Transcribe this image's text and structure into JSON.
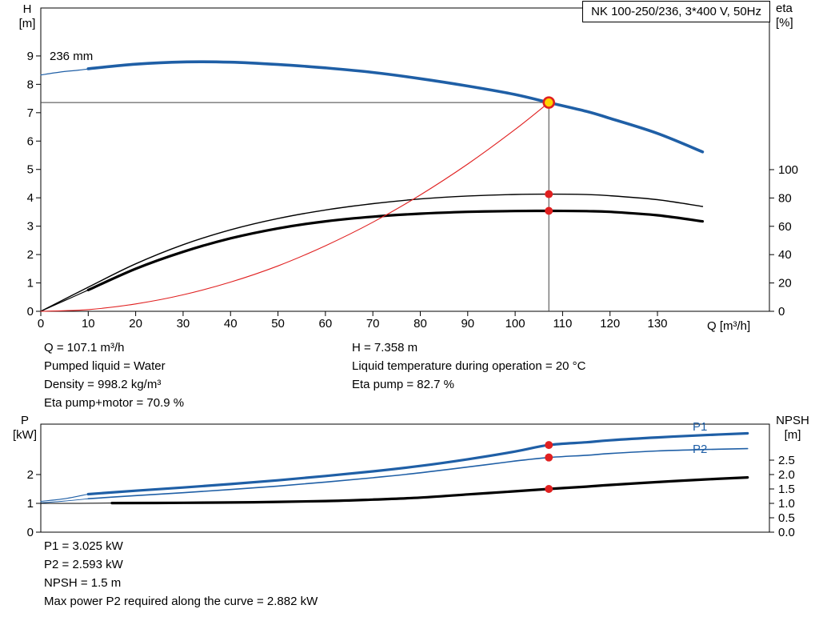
{
  "labels": {
    "h": "H",
    "h_unit": "[m]",
    "eta": "eta",
    "eta_unit": "[%]",
    "q": "Q [m³/h]",
    "p": "P",
    "p_unit": "[kW]",
    "npsh": "NPSH",
    "npsh_unit": "[m]",
    "p1": "P1",
    "p2": "P2",
    "impeller": "236 mm"
  },
  "info_top": {
    "left": [
      "Q = 107.1 m³/h",
      "Pumped liquid = Water",
      "Density = 998.2 kg/m³",
      "Eta pump+motor = 70.9 %"
    ],
    "right": [
      "H = 7.358 m",
      "Liquid temperature during operation = 20 °C",
      "Eta pump = 82.7 %"
    ]
  },
  "info_bottom": [
    "P1 = 3.025 kW",
    "P2 = 2.593 kW",
    "NPSH = 1.5 m",
    "Max power P2 required along the curve = 2.882 kW"
  ],
  "colors": {
    "curve_blue": "#1f5fa6",
    "curve_red": "#e02020",
    "curve_black": "#000000",
    "duty_point_fill": "#ffd400",
    "crosshair": "#404040"
  },
  "chart_data": [
    {
      "id": "qh_eta",
      "type": "line",
      "title": "NK 100-250/236, 3*400 V, 50Hz",
      "x_axis": {
        "label": "Q [m³/h]",
        "min": 0,
        "max": 153.6,
        "ticks": [
          {
            "v": 0,
            "label": "0"
          },
          {
            "v": 10,
            "label": "10"
          },
          {
            "v": 20,
            "label": "20"
          },
          {
            "v": 30,
            "label": "30"
          },
          {
            "v": 40,
            "label": "40"
          },
          {
            "v": 50,
            "label": "50"
          },
          {
            "v": 60,
            "label": "60"
          },
          {
            "v": 70,
            "label": "70"
          },
          {
            "v": 80,
            "label": "80"
          },
          {
            "v": 90,
            "label": "90"
          },
          {
            "v": 100,
            "label": "100"
          },
          {
            "v": 110,
            "label": "110"
          },
          {
            "v": 120,
            "label": "120"
          },
          {
            "v": 130,
            "label": "130"
          }
        ]
      },
      "y_left": {
        "label": "H [m]",
        "min": 0,
        "max": 10.69,
        "ticks": [
          {
            "v": 0,
            "label": "0"
          },
          {
            "v": 1,
            "label": "1"
          },
          {
            "v": 2,
            "label": "2"
          },
          {
            "v": 3,
            "label": "3"
          },
          {
            "v": 4,
            "label": "4"
          },
          {
            "v": 5,
            "label": "5"
          },
          {
            "v": 6,
            "label": "6"
          },
          {
            "v": 7,
            "label": "7"
          },
          {
            "v": 8,
            "label": "8"
          },
          {
            "v": 9,
            "label": "9"
          }
        ]
      },
      "y_right": {
        "label": "eta [%]",
        "min": 0,
        "max": 214.1,
        "ticks": [
          {
            "v": 0,
            "label": "0"
          },
          {
            "v": 20,
            "label": "20"
          },
          {
            "v": 40,
            "label": "40"
          },
          {
            "v": 60,
            "label": "60"
          },
          {
            "v": 80,
            "label": "80"
          },
          {
            "v": 100,
            "label": "100"
          }
        ]
      },
      "series": [
        {
          "name": "qh-curve-start-thin",
          "axis": "left",
          "color": "#1f5fa6",
          "width": 1.2,
          "points": [
            [
              0,
              8.33
            ],
            [
              4,
              8.43
            ],
            [
              8,
              8.5
            ],
            [
              12,
              8.58
            ]
          ]
        },
        {
          "name": "qh-curve-236mm",
          "axis": "left",
          "color": "#1f5fa6",
          "width": 3.6,
          "points": [
            [
              10,
              8.55
            ],
            [
              20,
              8.71
            ],
            [
              30,
              8.79
            ],
            [
              40,
              8.78
            ],
            [
              50,
              8.7
            ],
            [
              60,
              8.58
            ],
            [
              70,
              8.42
            ],
            [
              80,
              8.2
            ],
            [
              90,
              7.94
            ],
            [
              100,
              7.64
            ],
            [
              107.1,
              7.358
            ],
            [
              115,
              7.05
            ],
            [
              120,
              6.8
            ],
            [
              130,
              6.27
            ],
            [
              139.5,
              5.62
            ]
          ]
        },
        {
          "name": "eta-pump-curve",
          "axis": "right",
          "color": "#000000",
          "width": 1.4,
          "points": [
            [
              0,
              0
            ],
            [
              10,
              17
            ],
            [
              20,
              33.5
            ],
            [
              30,
              47
            ],
            [
              40,
              57.5
            ],
            [
              50,
              65.5
            ],
            [
              60,
              71.5
            ],
            [
              70,
              76
            ],
            [
              80,
              79.3
            ],
            [
              90,
              81.4
            ],
            [
              100,
              82.5
            ],
            [
              107.1,
              82.7
            ],
            [
              115,
              82.4
            ],
            [
              120,
              81.6
            ],
            [
              130,
              78.8
            ],
            [
              139.5,
              74
            ]
          ]
        },
        {
          "name": "eta-pump-motor-start-thin",
          "axis": "right",
          "color": "#000000",
          "width": 1.2,
          "points": [
            [
              0,
              0
            ],
            [
              5,
              7.5
            ],
            [
              10,
              15
            ]
          ]
        },
        {
          "name": "eta-pump-motor-curve",
          "axis": "right",
          "color": "#000000",
          "width": 3.2,
          "points": [
            [
              10,
              15
            ],
            [
              20,
              30
            ],
            [
              30,
              42
            ],
            [
              40,
              51.5
            ],
            [
              50,
              58.5
            ],
            [
              60,
              63.5
            ],
            [
              70,
              66.8
            ],
            [
              80,
              68.9
            ],
            [
              90,
              70.2
            ],
            [
              100,
              70.8
            ],
            [
              107.1,
              70.9
            ],
            [
              115,
              70.7
            ],
            [
              120,
              70.2
            ],
            [
              130,
              67.8
            ],
            [
              139.5,
              63.5
            ]
          ]
        },
        {
          "name": "system-resistance-curve",
          "axis": "left",
          "color": "#e02020",
          "width": 1.1,
          "points": [
            [
              0,
              0
            ],
            [
              10,
              0.06
            ],
            [
              20,
              0.26
            ],
            [
              30,
              0.58
            ],
            [
              40,
              1.03
            ],
            [
              50,
              1.6
            ],
            [
              60,
              2.31
            ],
            [
              70,
              3.14
            ],
            [
              80,
              4.1
            ],
            [
              90,
              5.19
            ],
            [
              100,
              6.41
            ],
            [
              107.1,
              7.358
            ]
          ]
        }
      ],
      "markers": [
        {
          "name": "duty-point",
          "axis": "left",
          "x": 107.1,
          "y": 7.358,
          "r": 6.5,
          "fill": "#ffd400",
          "stroke": "#e02020",
          "stroke_width": 2.6
        },
        {
          "name": "eta-pump-point",
          "axis": "right",
          "x": 107.1,
          "y": 82.7,
          "r": 5,
          "fill": "#e02020"
        },
        {
          "name": "eta-pump-motor-point",
          "axis": "right",
          "x": 107.1,
          "y": 70.9,
          "r": 5,
          "fill": "#e02020"
        }
      ],
      "crosshair": {
        "x": 107.1,
        "y": 7.358
      }
    },
    {
      "id": "power_npsh",
      "type": "line",
      "title": "",
      "x_axis": {
        "label": "",
        "min": 0,
        "max": 153.6,
        "ticks": []
      },
      "y_left": {
        "label": "P [kW]",
        "min": 0,
        "max": 3.75,
        "ticks": [
          {
            "v": 0,
            "label": "0"
          },
          {
            "v": 1,
            "label": "1"
          },
          {
            "v": 2,
            "label": "2"
          }
        ]
      },
      "y_right": {
        "label": "NPSH [m]",
        "min": 0,
        "max": 3.75,
        "ticks": [
          {
            "v": 0,
            "label": "0.0"
          },
          {
            "v": 0.5,
            "label": "0.5"
          },
          {
            "v": 1,
            "label": "1.0"
          },
          {
            "v": 1.5,
            "label": "1.5"
          },
          {
            "v": 2,
            "label": "2.0"
          },
          {
            "v": 2.5,
            "label": "2.5"
          }
        ]
      },
      "series": [
        {
          "name": "p1-start-thin",
          "axis": "left",
          "color": "#1f5fa6",
          "width": 1.1,
          "points": [
            [
              0,
              1.07
            ],
            [
              5,
              1.16
            ],
            [
              10,
              1.32
            ]
          ]
        },
        {
          "name": "p1-curve",
          "axis": "left",
          "color": "#1f5fa6",
          "width": 3.2,
          "points": [
            [
              10,
              1.32
            ],
            [
              20,
              1.44
            ],
            [
              30,
              1.55
            ],
            [
              40,
              1.67
            ],
            [
              50,
              1.8
            ],
            [
              60,
              1.95
            ],
            [
              70,
              2.11
            ],
            [
              80,
              2.3
            ],
            [
              90,
              2.53
            ],
            [
              100,
              2.8
            ],
            [
              107.1,
              3.025
            ],
            [
              115,
              3.12
            ],
            [
              120,
              3.19
            ],
            [
              130,
              3.29
            ],
            [
              140,
              3.37
            ],
            [
              149,
              3.43
            ]
          ]
        },
        {
          "name": "p2-start-thin",
          "axis": "left",
          "color": "#1f5fa6",
          "width": 1.0,
          "points": [
            [
              0,
              1.02
            ],
            [
              5,
              1.08
            ],
            [
              10,
              1.16
            ]
          ]
        },
        {
          "name": "p2-curve",
          "axis": "left",
          "color": "#1f5fa6",
          "width": 1.6,
          "points": [
            [
              10,
              1.16
            ],
            [
              20,
              1.27
            ],
            [
              30,
              1.37
            ],
            [
              40,
              1.48
            ],
            [
              50,
              1.6
            ],
            [
              60,
              1.74
            ],
            [
              70,
              1.89
            ],
            [
              80,
              2.06
            ],
            [
              90,
              2.26
            ],
            [
              100,
              2.47
            ],
            [
              107.1,
              2.593
            ],
            [
              115,
              2.67
            ],
            [
              120,
              2.73
            ],
            [
              130,
              2.82
            ],
            [
              140,
              2.87
            ],
            [
              149,
              2.9
            ]
          ]
        },
        {
          "name": "npsh-start-thin",
          "axis": "right",
          "color": "#000000",
          "width": 1.0,
          "points": [
            [
              0,
              1.0
            ],
            [
              8,
              1.0
            ],
            [
              15,
              1.01
            ]
          ]
        },
        {
          "name": "npsh-curve",
          "axis": "right",
          "color": "#000000",
          "width": 3.2,
          "points": [
            [
              15,
              1.01
            ],
            [
              30,
              1.02
            ],
            [
              45,
              1.04
            ],
            [
              60,
              1.08
            ],
            [
              70,
              1.13
            ],
            [
              80,
              1.2
            ],
            [
              90,
              1.31
            ],
            [
              100,
              1.42
            ],
            [
              107.1,
              1.5
            ],
            [
              115,
              1.58
            ],
            [
              120,
              1.64
            ],
            [
              130,
              1.74
            ],
            [
              140,
              1.83
            ],
            [
              149,
              1.9
            ]
          ]
        }
      ],
      "markers": [
        {
          "name": "p1-point",
          "axis": "left",
          "x": 107.1,
          "y": 3.025,
          "r": 5,
          "fill": "#e02020"
        },
        {
          "name": "p2-point",
          "axis": "left",
          "x": 107.1,
          "y": 2.593,
          "r": 5,
          "fill": "#e02020"
        },
        {
          "name": "npsh-point",
          "axis": "right",
          "x": 107.1,
          "y": 1.5,
          "r": 5,
          "fill": "#e02020"
        }
      ]
    }
  ]
}
